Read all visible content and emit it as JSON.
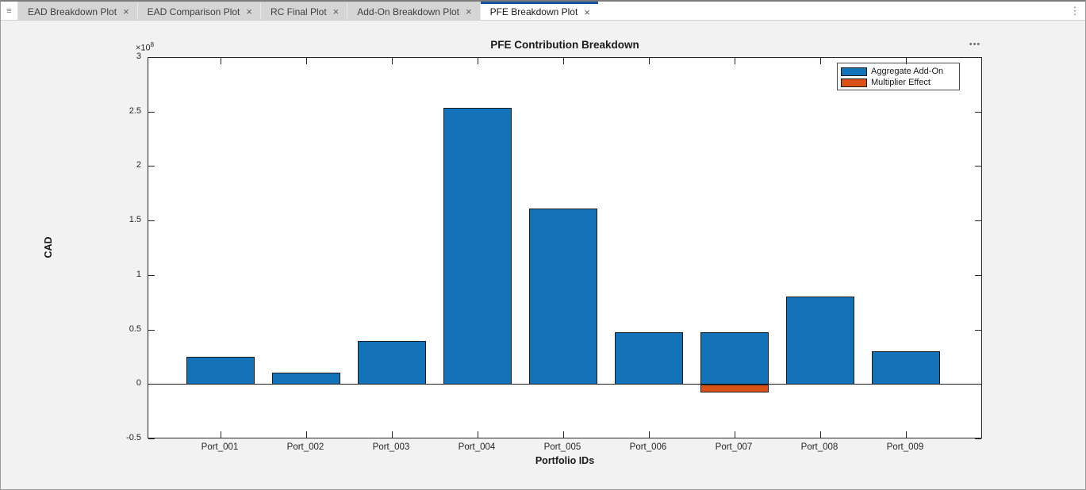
{
  "icons": {
    "grip": "≡",
    "overflow": "⋮",
    "close": "×",
    "more": "•••"
  },
  "tabs": [
    {
      "label": "EAD Breakdown Plot",
      "active": false
    },
    {
      "label": "EAD Comparison Plot",
      "active": false
    },
    {
      "label": "RC Final Plot",
      "active": false
    },
    {
      "label": "Add-On Breakdown Plot",
      "active": false
    },
    {
      "label": "PFE Breakdown Plot",
      "active": true
    }
  ],
  "colors": {
    "tab_accent": "#15559e",
    "bar_blue": "#1473b8",
    "bar_orange": "#d95319"
  },
  "chart_data": {
    "type": "bar",
    "title": "PFE Contribution Breakdown",
    "xlabel": "Portfolio IDs",
    "ylabel": "CAD",
    "exponent_base": "×10",
    "exponent_power": "8",
    "categories": [
      "Port_001",
      "Port_002",
      "Port_003",
      "Port_004",
      "Port_005",
      "Port_006",
      "Port_007",
      "Port_008",
      "Port_009"
    ],
    "series": [
      {
        "name": "Aggregate Add-On",
        "color": "#1473b8",
        "values": [
          0.26,
          0.11,
          0.4,
          2.54,
          1.62,
          0.48,
          0.48,
          0.81,
          0.31
        ]
      },
      {
        "name": "Multiplier Effect",
        "color": "#d95319",
        "values": [
          0,
          0,
          0,
          0,
          0,
          0,
          -0.07,
          0,
          0
        ]
      }
    ],
    "values_scale_note": "axis units of ×10^8 CAD",
    "ylim": [
      -0.5,
      3
    ],
    "yticks": [
      -0.5,
      0,
      0.5,
      1,
      1.5,
      2,
      2.5,
      3
    ],
    "grid": false,
    "legend_position": "northeast",
    "bar_mode": "stacked"
  }
}
